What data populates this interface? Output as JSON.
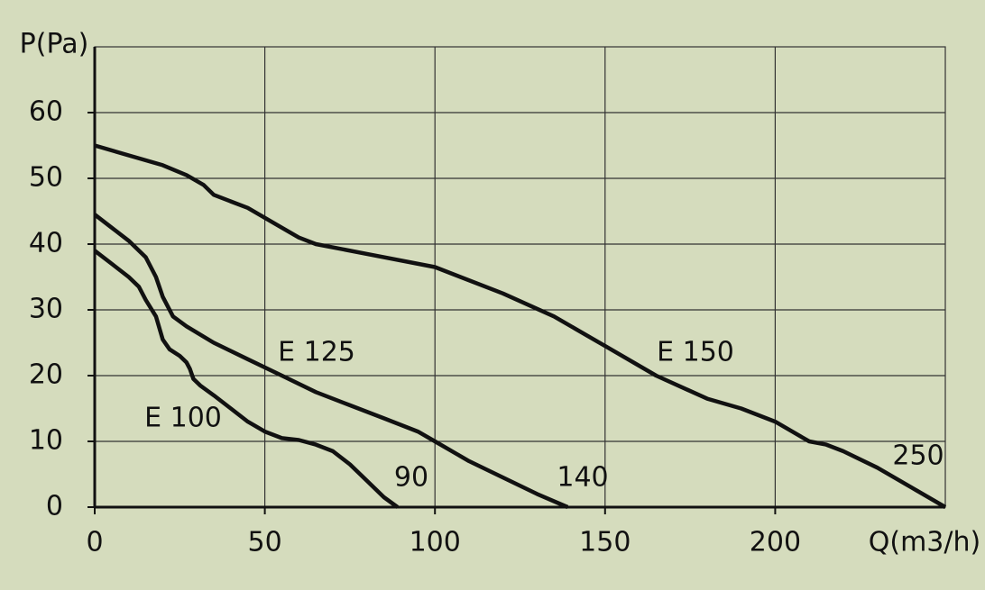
{
  "chart_data": {
    "type": "line",
    "y_label": "P(Pa)",
    "x_label": "Q(m3/h)",
    "xlim": [
      0,
      250
    ],
    "xticks": [
      0,
      50,
      100,
      150,
      200
    ],
    "ylim": [
      0,
      70
    ],
    "yticks": [
      0,
      10,
      20,
      30,
      40,
      50,
      60
    ],
    "grid": true,
    "series": [
      {
        "name": "E 100",
        "color": "#111111",
        "x": [
          0,
          5,
          10,
          13,
          15,
          18,
          20,
          22,
          25,
          27,
          28,
          29,
          31,
          35,
          40,
          45,
          50,
          55,
          60,
          65,
          70,
          75,
          80,
          85,
          89
        ],
        "values": [
          39,
          37,
          35,
          33.5,
          31.5,
          29,
          25.5,
          24,
          23,
          22,
          21,
          19.5,
          18.5,
          17,
          15,
          13,
          11.5,
          10.5,
          10.2,
          9.5,
          8.5,
          6.5,
          4,
          1.5,
          0
        ]
      },
      {
        "name": "E 125",
        "color": "#111111",
        "x": [
          0,
          5,
          10,
          15,
          18,
          20,
          23,
          27,
          35,
          45,
          55,
          65,
          75,
          85,
          95,
          100,
          110,
          120,
          130,
          139
        ],
        "values": [
          44.5,
          42.5,
          40.5,
          38,
          35,
          32,
          29,
          27.5,
          25,
          22.5,
          20,
          17.5,
          15.5,
          13.5,
          11.5,
          10,
          7,
          4.5,
          2,
          0
        ]
      },
      {
        "name": "E 150",
        "color": "#111111",
        "x": [
          0,
          10,
          20,
          27,
          32,
          35,
          40,
          45,
          50,
          55,
          60,
          65,
          80,
          100,
          105,
          120,
          135,
          150,
          165,
          180,
          190,
          200,
          205,
          210,
          215,
          220,
          230,
          240,
          250
        ],
        "values": [
          55,
          53.5,
          52,
          50.5,
          49,
          47.5,
          46.5,
          45.5,
          44,
          42.5,
          41,
          40,
          38.5,
          36.5,
          35.5,
          32.5,
          29,
          24.5,
          20,
          16.5,
          15,
          13,
          11.5,
          10,
          9.5,
          8.5,
          6,
          3,
          0
        ]
      }
    ],
    "annotations": [
      "90",
      "140",
      "250"
    ]
  }
}
